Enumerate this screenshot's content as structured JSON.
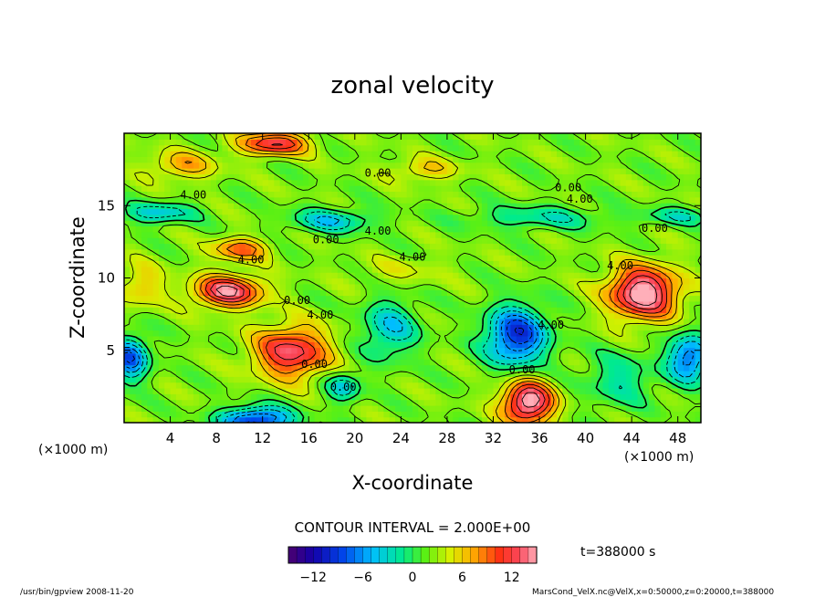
{
  "chart_data": {
    "type": "heatmap",
    "title": "zonal velocity",
    "xlabel": "X-coordinate",
    "ylabel": "Z-coordinate",
    "x_unit": "(×1000 m)",
    "y_unit": "(×1000 m)",
    "xlim": [
      0,
      50
    ],
    "ylim": [
      0,
      20
    ],
    "x_ticks": [
      4,
      8,
      12,
      16,
      20,
      24,
      28,
      32,
      36,
      40,
      44,
      48
    ],
    "y_ticks": [
      5,
      10,
      15
    ],
    "contour_interval_text": "CONTOUR INTERVAL = 2.000E+00",
    "contour_interval": 2.0,
    "time_label": "t=388000 s",
    "colorbar": {
      "min": -15,
      "max": 15,
      "ticks": [
        -12,
        -6,
        0,
        6,
        12
      ]
    },
    "contour_labels": [
      {
        "text": "4.00",
        "x": 6,
        "y": 15.5
      },
      {
        "text": "0.00",
        "x": 22,
        "y": 17.0
      },
      {
        "text": "0.00",
        "x": 38.5,
        "y": 16.0
      },
      {
        "text": "4.00",
        "x": 39.5,
        "y": 15.2
      },
      {
        "text": "0.00",
        "x": 46,
        "y": 13.2
      },
      {
        "text": "0.00",
        "x": 17.5,
        "y": 12.4
      },
      {
        "text": "4.00",
        "x": 22,
        "y": 13.0
      },
      {
        "text": "4.00",
        "x": 25,
        "y": 11.2
      },
      {
        "text": "4.00",
        "x": 11,
        "y": 11.0
      },
      {
        "text": "4.00",
        "x": 43,
        "y": 10.6
      },
      {
        "text": "0.00",
        "x": 15,
        "y": 8.2
      },
      {
        "text": "4.00",
        "x": 17,
        "y": 7.2
      },
      {
        "text": "4.00",
        "x": 37,
        "y": 6.5
      },
      {
        "text": "0.00",
        "x": 16.5,
        "y": 3.8
      },
      {
        "text": "0.00",
        "x": 19,
        "y": 2.2
      },
      {
        "text": "0.00",
        "x": 34.5,
        "y": 3.4
      }
    ],
    "features": [
      {
        "x": 9,
        "z": 9.1,
        "u": 12,
        "sx": 3.0,
        "sz": 1.1
      },
      {
        "x": 14.5,
        "z": 4.9,
        "u": 11,
        "sx": 3.2,
        "sz": 1.8
      },
      {
        "x": 13,
        "z": 19.3,
        "u": 10,
        "sx": 3.0,
        "sz": 0.8
      },
      {
        "x": 10,
        "z": 12.0,
        "u": 7,
        "sx": 2.5,
        "sz": 0.8
      },
      {
        "x": 5,
        "z": 17.8,
        "u": 5,
        "sx": 3.0,
        "sz": 1.0
      },
      {
        "x": 26,
        "z": 17.5,
        "u": 4,
        "sx": 3.0,
        "sz": 0.8
      },
      {
        "x": 35,
        "z": 1.4,
        "u": 14,
        "sx": 2.2,
        "sz": 1.5
      },
      {
        "x": 45,
        "z": 9.0,
        "u": 14,
        "sx": 3.0,
        "sz": 1.8
      },
      {
        "x": 1.5,
        "z": 9.5,
        "u": 4,
        "sx": 2.0,
        "sz": 1.5
      },
      {
        "x": 34,
        "z": 6.0,
        "u": -12,
        "sx": 2.6,
        "sz": 2.0
      },
      {
        "x": 11.5,
        "z": 0.2,
        "u": -12,
        "sx": 3.0,
        "sz": 0.9
      },
      {
        "x": 0.5,
        "z": 4.5,
        "u": -10,
        "sx": 1.6,
        "sz": 1.5
      },
      {
        "x": 49,
        "z": 4.5,
        "u": -10,
        "sx": 1.8,
        "sz": 1.6
      },
      {
        "x": 23,
        "z": 6.5,
        "u": -6,
        "sx": 2.4,
        "sz": 2.0
      },
      {
        "x": 43,
        "z": 3.0,
        "u": -4,
        "sx": 3.0,
        "sz": 1.8
      },
      {
        "x": 19,
        "z": 2.5,
        "u": -6,
        "sx": 1.5,
        "sz": 1.0
      },
      {
        "x": 3,
        "z": 14.5,
        "u": -6,
        "sx": 3.0,
        "sz": 0.7
      },
      {
        "x": 18,
        "z": 14.0,
        "u": -6,
        "sx": 3.5,
        "sz": 0.8
      },
      {
        "x": 36,
        "z": 14.2,
        "u": -4,
        "sx": 6.0,
        "sz": 0.8
      },
      {
        "x": 48,
        "z": 14.3,
        "u": -4,
        "sx": 3.0,
        "sz": 0.6
      },
      {
        "x": 24,
        "z": 10.5,
        "u": 2,
        "sx": 4.0,
        "sz": 1.0
      }
    ],
    "grid": false,
    "colormap": "rainbow"
  },
  "footer": {
    "left": "/usr/bin/gpview  2008-11-20",
    "right": "MarsCond_VelX.nc@VelX,x=0:50000,z=0:20000,t=388000"
  }
}
